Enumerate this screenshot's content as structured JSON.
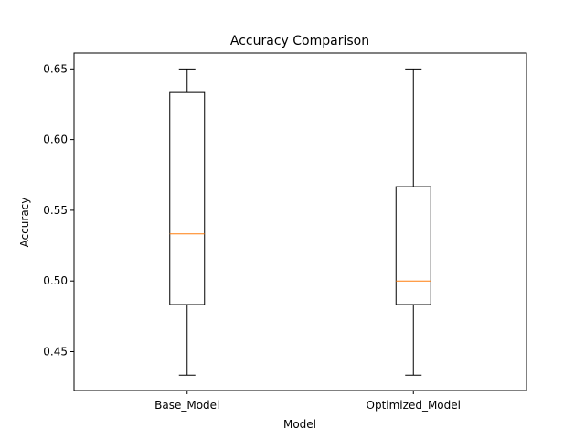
{
  "chart_data": {
    "type": "box",
    "title": "Accuracy Comparison",
    "xlabel": "Model",
    "ylabel": "Accuracy",
    "ylim": [
      0.4225,
      0.6612
    ],
    "yticks": [
      0.45,
      0.5,
      0.55,
      0.6,
      0.65
    ],
    "ytick_labels": [
      "0.45",
      "0.50",
      "0.55",
      "0.60",
      "0.65"
    ],
    "categories": [
      "Base_Model",
      "Optimized_Model"
    ],
    "boxes": [
      {
        "category": "Base_Model",
        "whisker_low": 0.4333,
        "q1": 0.4833,
        "median": 0.5333,
        "q3": 0.6333,
        "whisker_high": 0.65
      },
      {
        "category": "Optimized_Model",
        "whisker_low": 0.4333,
        "q1": 0.4833,
        "median": 0.5,
        "q3": 0.5667,
        "whisker_high": 0.65
      }
    ],
    "grid": false,
    "legend": "none",
    "colors": {
      "box": "#000000",
      "median": "#ff7f0e"
    }
  }
}
